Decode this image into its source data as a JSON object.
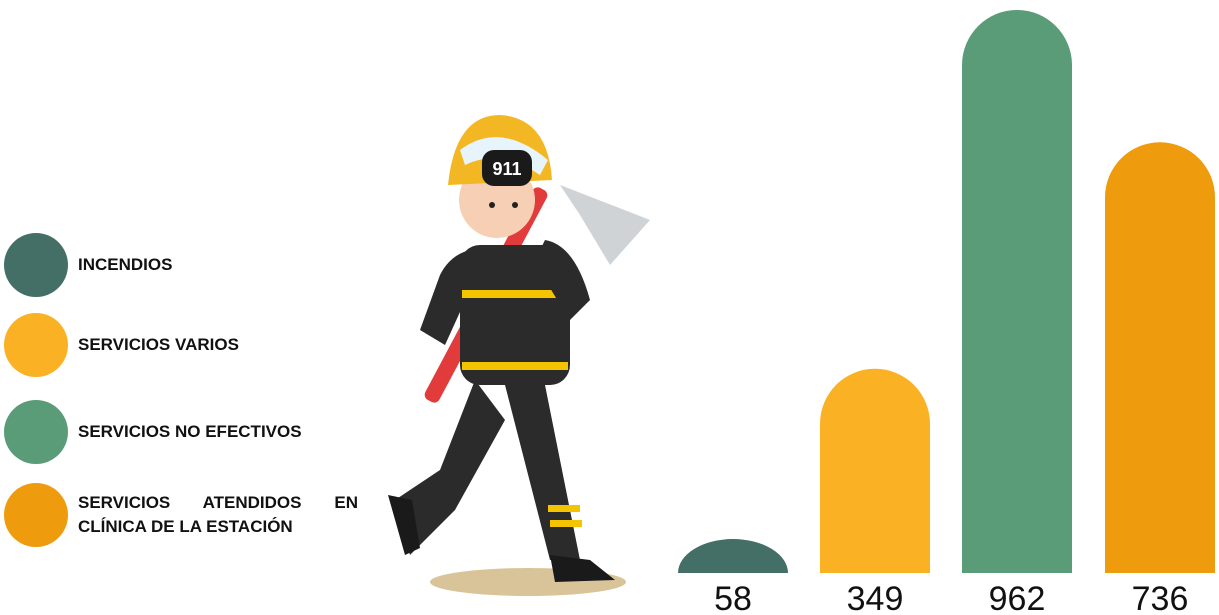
{
  "chart_data": {
    "type": "bar",
    "categories": [
      "INCENDIOS",
      "SERVICIOS VARIOS",
      "SERVICIOS NO EFECTIVOS",
      "SERVICIOS ATENDIDOS EN CLÍNICA DE LA ESTACIÓN"
    ],
    "values": [
      58,
      349,
      962,
      736
    ],
    "colors": [
      "#436f66",
      "#fbb124",
      "#5a9c78",
      "#ee9c0d"
    ]
  }
}
